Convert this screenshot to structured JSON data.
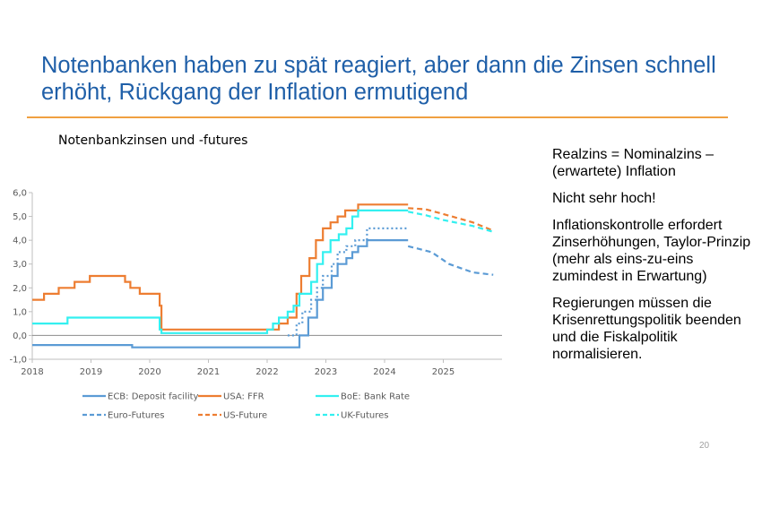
{
  "slide": {
    "title": "Notenbanken haben zu spät reagiert, aber dann die Zinsen schnell erhöht, Rückgang der Inflation ermutigend",
    "page_number": "20",
    "notes": [
      "Realzins  = Nominalzins – (erwartete) Inflation",
      "Nicht sehr hoch!",
      "Inflationskontrolle erfordert Zinserhöhungen, Taylor-Prinzip (mehr als eins-zu-eins zumindest in Erwartung)",
      "Regierungen müssen die Krisenrettungspolitik beenden und die Fiskalpolitik normalisieren."
    ]
  },
  "colors": {
    "title": "#1f5fa8",
    "rule": "#f0a040",
    "ecb": "#5b9bd5",
    "usa": "#ed7d31",
    "boe": "#33f0f0",
    "axis": "#595959"
  },
  "chart_data": {
    "type": "line",
    "title": "Notenbankzinsen und -futures",
    "xlim": [
      2018,
      2026
    ],
    "ylim": [
      -1,
      6
    ],
    "x_ticks": [
      "2018",
      "2019",
      "2020",
      "2021",
      "2022",
      "2023",
      "2024",
      "2025"
    ],
    "y_ticks": [
      "6,0",
      "5,0",
      "4,0",
      "3,0",
      "2,0",
      "1,0",
      "0,0",
      "-1,0"
    ],
    "y_tick_values": [
      6,
      5,
      4,
      3,
      2,
      1,
      0,
      -1
    ],
    "legend_position": "bottom",
    "series": [
      {
        "name": "ECB: Deposit facility",
        "style": "solid",
        "color": "#5b9bd5",
        "step": true,
        "points": [
          [
            2018.0,
            -0.4
          ],
          [
            2019.7,
            -0.5
          ],
          [
            2022.55,
            0.0
          ],
          [
            2022.7,
            0.75
          ],
          [
            2022.85,
            1.5
          ],
          [
            2022.95,
            2.0
          ],
          [
            2023.1,
            2.5
          ],
          [
            2023.2,
            3.0
          ],
          [
            2023.35,
            3.25
          ],
          [
            2023.45,
            3.5
          ],
          [
            2023.55,
            3.75
          ],
          [
            2023.7,
            4.0
          ],
          [
            2024.4,
            4.0
          ]
        ]
      },
      {
        "name": "USA: FFR",
        "style": "solid",
        "color": "#ed7d31",
        "step": true,
        "points": [
          [
            2018.0,
            1.5
          ],
          [
            2018.2,
            1.75
          ],
          [
            2018.45,
            2.0
          ],
          [
            2018.72,
            2.25
          ],
          [
            2018.98,
            2.5
          ],
          [
            2019.58,
            2.25
          ],
          [
            2019.67,
            2.0
          ],
          [
            2019.83,
            1.75
          ],
          [
            2020.17,
            1.25
          ],
          [
            2020.2,
            0.25
          ],
          [
            2022.05,
            0.25
          ],
          [
            2022.2,
            0.5
          ],
          [
            2022.35,
            0.75
          ],
          [
            2022.5,
            1.75
          ],
          [
            2022.58,
            2.5
          ],
          [
            2022.72,
            3.25
          ],
          [
            2022.83,
            4.0
          ],
          [
            2022.95,
            4.5
          ],
          [
            2023.08,
            4.75
          ],
          [
            2023.2,
            5.0
          ],
          [
            2023.33,
            5.25
          ],
          [
            2023.55,
            5.5
          ],
          [
            2024.4,
            5.5
          ]
        ]
      },
      {
        "name": "BoE: Bank Rate",
        "style": "solid",
        "color": "#33f0f0",
        "step": true,
        "points": [
          [
            2018.0,
            0.5
          ],
          [
            2018.6,
            0.75
          ],
          [
            2020.17,
            0.25
          ],
          [
            2020.2,
            0.1
          ],
          [
            2021.95,
            0.1
          ],
          [
            2022.0,
            0.25
          ],
          [
            2022.1,
            0.5
          ],
          [
            2022.2,
            0.75
          ],
          [
            2022.35,
            1.0
          ],
          [
            2022.45,
            1.25
          ],
          [
            2022.55,
            1.75
          ],
          [
            2022.75,
            2.25
          ],
          [
            2022.85,
            3.0
          ],
          [
            2022.95,
            3.5
          ],
          [
            2023.08,
            4.0
          ],
          [
            2023.22,
            4.25
          ],
          [
            2023.35,
            4.5
          ],
          [
            2023.45,
            5.0
          ],
          [
            2023.55,
            5.25
          ],
          [
            2024.4,
            5.25
          ]
        ]
      },
      {
        "name": "",
        "style": "dotted",
        "color": "#5b9bd5",
        "step": true,
        "points": [
          [
            2022.35,
            0.0
          ],
          [
            2022.5,
            0.5
          ],
          [
            2022.6,
            1.0
          ],
          [
            2022.75,
            1.5
          ],
          [
            2022.85,
            2.0
          ],
          [
            2022.95,
            2.5
          ],
          [
            2023.1,
            3.0
          ],
          [
            2023.2,
            3.5
          ],
          [
            2023.35,
            3.75
          ],
          [
            2023.5,
            4.0
          ],
          [
            2023.7,
            4.5
          ],
          [
            2024.4,
            4.5
          ]
        ]
      },
      {
        "name": "Euro-Futures",
        "style": "dashed",
        "color": "#5b9bd5",
        "step": false,
        "points": [
          [
            2024.4,
            3.75
          ],
          [
            2024.8,
            3.5
          ],
          [
            2025.1,
            3.0
          ],
          [
            2025.5,
            2.65
          ],
          [
            2025.85,
            2.55
          ]
        ]
      },
      {
        "name": "US-Future",
        "style": "dashed",
        "color": "#ed7d31",
        "step": false,
        "points": [
          [
            2024.4,
            5.35
          ],
          [
            2024.7,
            5.3
          ],
          [
            2025.0,
            5.1
          ],
          [
            2025.5,
            4.75
          ],
          [
            2025.85,
            4.4
          ]
        ]
      },
      {
        "name": "UK-Futures",
        "style": "dashed",
        "color": "#33f0f0",
        "step": false,
        "points": [
          [
            2024.4,
            5.2
          ],
          [
            2024.7,
            5.05
          ],
          [
            2025.0,
            4.85
          ],
          [
            2025.5,
            4.6
          ],
          [
            2025.85,
            4.35
          ]
        ]
      }
    ],
    "legend": [
      {
        "name": "ECB: Deposit facility",
        "style": "solid",
        "color": "#5b9bd5"
      },
      {
        "name": "USA: FFR",
        "style": "solid",
        "color": "#ed7d31"
      },
      {
        "name": "BoE: Bank Rate",
        "style": "solid",
        "color": "#33f0f0"
      },
      {
        "name": "Euro-Futures",
        "style": "dashed",
        "color": "#5b9bd5"
      },
      {
        "name": "US-Future",
        "style": "dashed",
        "color": "#ed7d31"
      },
      {
        "name": "UK-Futures",
        "style": "dashed",
        "color": "#33f0f0"
      }
    ]
  }
}
